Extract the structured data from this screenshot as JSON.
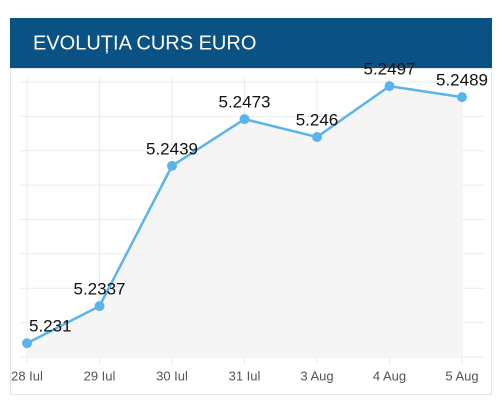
{
  "chart_data": {
    "type": "line",
    "title": "EVOLUȚIA CURS EURO",
    "categories": [
      "28 Iul",
      "29 Iul",
      "30 Iul",
      "31 Iul",
      "3 Aug",
      "4 Aug",
      "5 Aug"
    ],
    "values": [
      5.231,
      5.2337,
      5.2439,
      5.2473,
      5.246,
      5.2497,
      5.2489
    ],
    "color": "#5ab4ec",
    "ylim": [
      5.23,
      5.25
    ],
    "yticks": [
      5.23,
      5.2325,
      5.235,
      5.2375,
      5.24,
      5.2425,
      5.245,
      5.2475,
      5.25
    ],
    "grid": true
  }
}
